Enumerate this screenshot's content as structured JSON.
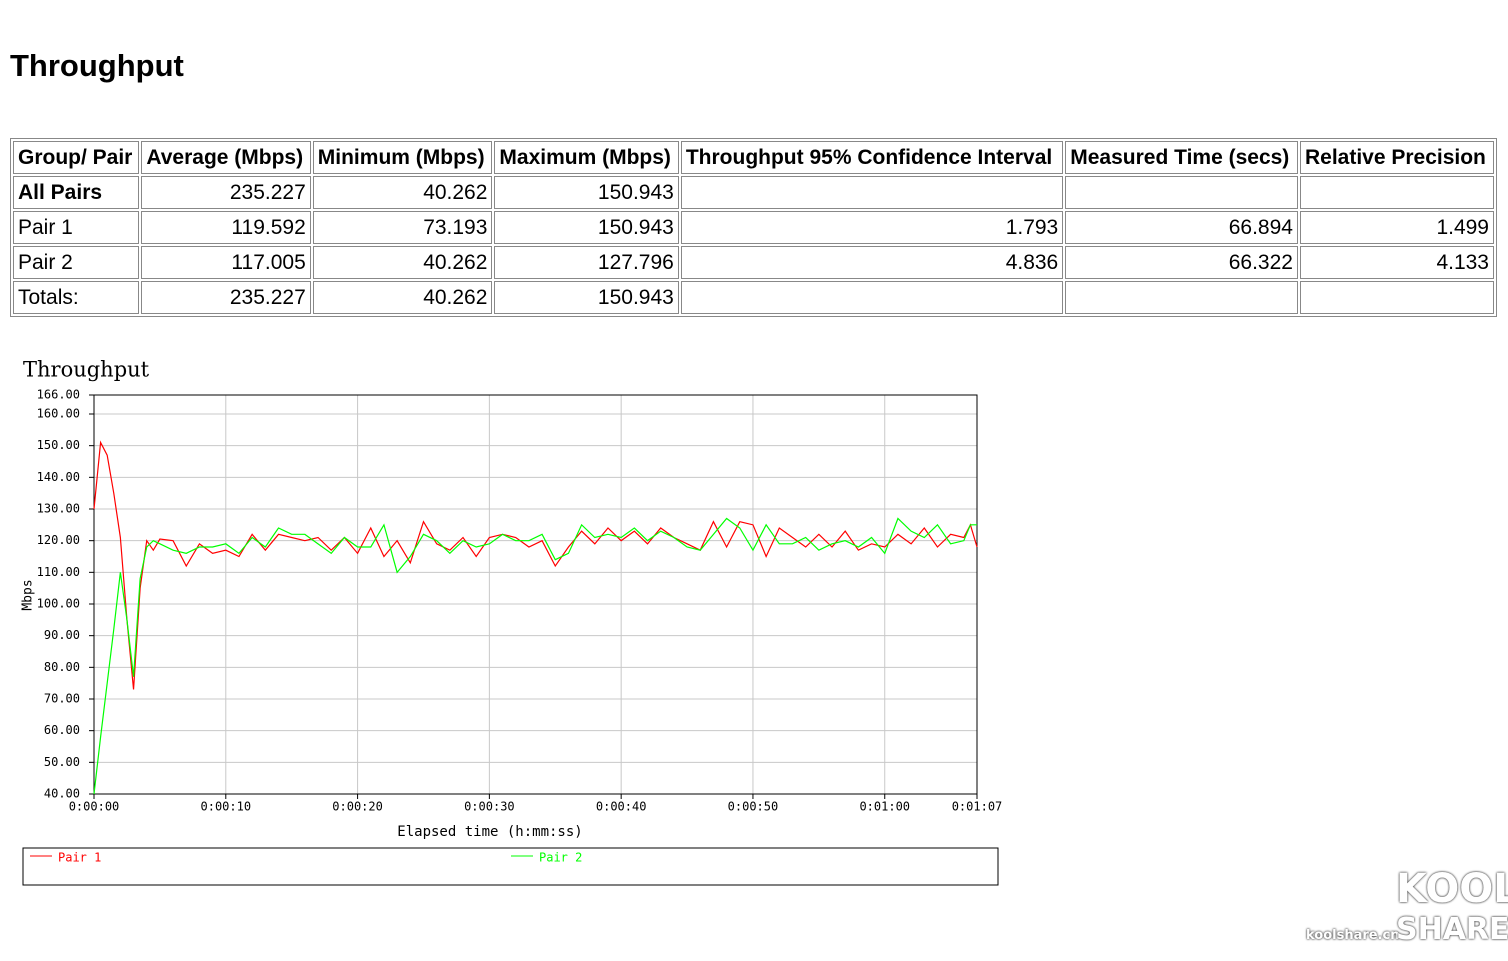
{
  "page_title": "Throughput",
  "table": {
    "header": [
      "Group/ Pair",
      "Average (Mbps)",
      "Minimum (Mbps)",
      "Maximum (Mbps)",
      "Throughput 95% Confidence Interval",
      "Measured Time (secs)",
      "Relative Precision"
    ],
    "rows": [
      [
        "All Pairs",
        235.227,
        40.262,
        150.943,
        null,
        null,
        null
      ],
      [
        "Pair 1",
        119.592,
        73.193,
        150.943,
        1.793,
        66.894,
        1.499
      ],
      [
        "Pair 2",
        117.005,
        40.262,
        127.796,
        4.836,
        66.322,
        4.133
      ],
      [
        "Totals:",
        235.227,
        40.262,
        150.943,
        null,
        null,
        null
      ]
    ]
  },
  "chart_data": {
    "type": "line",
    "title": "Throughput",
    "x_label": "Elapsed time (h:mm:ss)",
    "y_label": "Mbps",
    "xlim": [
      0,
      67
    ],
    "xticks": [
      {
        "value": 0,
        "label": "0:00:00"
      },
      {
        "value": 10,
        "label": "0:00:10"
      },
      {
        "value": 20,
        "label": "0:00:20"
      },
      {
        "value": 30,
        "label": "0:00:30"
      },
      {
        "value": 40,
        "label": "0:00:40"
      },
      {
        "value": 50,
        "label": "0:00:50"
      },
      {
        "value": 60,
        "label": "0:01:00"
      },
      {
        "value": 67,
        "label": "0:01:07"
      }
    ],
    "ylim": [
      40,
      166
    ],
    "yticks": [
      {
        "value": 40,
        "label": "40.00"
      },
      {
        "value": 50,
        "label": "50.00"
      },
      {
        "value": 60,
        "label": "60.00"
      },
      {
        "value": 70,
        "label": "70.00"
      },
      {
        "value": 80,
        "label": "80.00"
      },
      {
        "value": 90,
        "label": "90.00"
      },
      {
        "value": 100,
        "label": "100.00"
      },
      {
        "value": 110,
        "label": "110.00"
      },
      {
        "value": 120,
        "label": "120.00"
      },
      {
        "value": 130,
        "label": "130.00"
      },
      {
        "value": 140,
        "label": "140.00"
      },
      {
        "value": 150,
        "label": "150.00"
      },
      {
        "value": 160,
        "label": "160.00"
      },
      {
        "value": 166,
        "label": "166.00"
      }
    ],
    "grid": true,
    "x": [
      0,
      0.5,
      1,
      1.5,
      2,
      2.5,
      3,
      3.5,
      4,
      4.5,
      5,
      6,
      7,
      8,
      9,
      10,
      11,
      12,
      13,
      14,
      15,
      16,
      17,
      18,
      19,
      20,
      21,
      22,
      23,
      24,
      25,
      26,
      27,
      28,
      29,
      30,
      31,
      32,
      33,
      34,
      35,
      36,
      37,
      38,
      39,
      40,
      41,
      42,
      43,
      44,
      45,
      46,
      47,
      48,
      49,
      50,
      51,
      52,
      53,
      54,
      55,
      56,
      57,
      58,
      59,
      60,
      61,
      62,
      63,
      64,
      65,
      66,
      66.5,
      67
    ],
    "series": [
      {
        "name": "Pair 1",
        "color": "#ff0000",
        "values": [
          130,
          151,
          147,
          135,
          121,
          95,
          73,
          105,
          120,
          117,
          120.5,
          120,
          112,
          119,
          116,
          117,
          115,
          122,
          117,
          122,
          121,
          120,
          121,
          117,
          121,
          116,
          124,
          115,
          120,
          113,
          126,
          119,
          117,
          121,
          115,
          121,
          122,
          121,
          118,
          120,
          112,
          118,
          123,
          119,
          124,
          120,
          123,
          119,
          124,
          121,
          119,
          117,
          126,
          118,
          126,
          125,
          115,
          124,
          121,
          118,
          122,
          118,
          123,
          117,
          119,
          118,
          122,
          119,
          124,
          118,
          122,
          121,
          125,
          118
        ]
      },
      {
        "name": "Pair 2",
        "color": "#00ff00",
        "values": [
          40,
          58,
          75,
          92,
          110,
          95,
          77,
          108,
          118,
          120,
          119,
          117,
          116,
          118,
          118,
          119,
          116,
          121,
          118,
          124,
          122,
          122,
          119,
          116,
          121,
          118,
          118,
          125,
          110,
          115,
          122,
          120,
          116,
          120,
          118,
          119,
          122,
          120,
          120,
          122,
          114,
          116,
          125,
          121,
          122,
          121,
          124,
          120,
          123,
          121,
          118,
          117,
          122,
          127,
          124,
          117,
          125,
          119,
          119,
          121,
          117,
          119,
          120,
          118,
          121,
          116,
          127,
          123,
          121,
          125,
          119,
          120,
          125,
          125
        ]
      }
    ]
  },
  "watermark": {
    "site": "koolshare.cn",
    "logo_top": "KOOL",
    "logo_bottom": "SHARE"
  }
}
